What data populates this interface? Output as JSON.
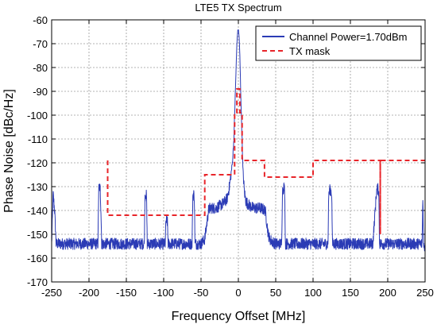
{
  "chart_data": {
    "type": "line",
    "title": "LTE5 TX Spectrum",
    "xlabel": "Frequency Offset [MHz]",
    "ylabel": "Phase Noise [dBc/Hz]",
    "xlim": [
      -250,
      250
    ],
    "ylim": [
      -170,
      -60
    ],
    "x_ticks": [
      -250,
      -200,
      -150,
      -100,
      -50,
      0,
      50,
      100,
      150,
      200,
      250
    ],
    "y_ticks": [
      -60,
      -70,
      -80,
      -90,
      -100,
      -110,
      -120,
      -130,
      -140,
      -150,
      -160,
      -170
    ],
    "grid": true,
    "legend_position": "top-right",
    "series": [
      {
        "name": "Channel Power=1.70dBm",
        "color": "#2b3bb5",
        "style": "solid",
        "noise_floor": -154,
        "x": [
          -250,
          -248,
          -246,
          -244,
          -200,
          -188,
          -187,
          -186,
          -185,
          -184,
          -183,
          -182,
          -175,
          -126,
          -125,
          -124,
          -123,
          -122,
          -100,
          -98,
          -97,
          -96,
          -95,
          -94,
          -92,
          -62,
          -61,
          -60,
          -59,
          -58,
          -50,
          -45,
          -42,
          -40,
          -38,
          -36,
          -30,
          -25,
          -20,
          -15,
          -12,
          -10,
          -8,
          -6,
          -5,
          -4,
          -3,
          -2,
          -1,
          0,
          1,
          2,
          3,
          4,
          5,
          6,
          8,
          10,
          12,
          15,
          20,
          25,
          30,
          36,
          38,
          40,
          42,
          45,
          50,
          58,
          59,
          60,
          61,
          62,
          63,
          64,
          80,
          100,
          120,
          121,
          122,
          123,
          124,
          125,
          126,
          150,
          180,
          185,
          186,
          187,
          188,
          189,
          190,
          195,
          200,
          246,
          247,
          248,
          250
        ],
        "y": [
          -154,
          -133,
          -140,
          -154,
          -154,
          -154,
          -131,
          -130,
          -131,
          -140,
          -154,
          -154,
          -154,
          -154,
          -134,
          -133,
          -134,
          -154,
          -154,
          -154,
          -145,
          -144,
          -145,
          -154,
          -154,
          -154,
          -134,
          -133,
          -134,
          -154,
          -154,
          -152,
          -145,
          -140,
          -139,
          -139,
          -139,
          -138,
          -137,
          -135,
          -130,
          -125,
          -120,
          -110,
          -100,
          -90,
          -80,
          -70,
          -65,
          -64,
          -67,
          -75,
          -88,
          -100,
          -110,
          -122,
          -132,
          -136,
          -137,
          -138,
          -139,
          -139,
          -139,
          -140,
          -145,
          -150,
          -152,
          -153,
          -154,
          -154,
          -132,
          -131,
          -130,
          -132,
          -154,
          -154,
          -154,
          -154,
          -154,
          -133,
          -132,
          -131,
          -132,
          -133,
          -154,
          -154,
          -154,
          -132,
          -131,
          -131,
          -132,
          -154,
          -154,
          -154,
          -154,
          -154,
          -134,
          -155,
          -155
        ]
      },
      {
        "name": "TX mask",
        "color": "#e8252a",
        "style": "dashed",
        "x": [
          -175,
          -175,
          -45,
          -45,
          -5,
          -5,
          -2,
          -2,
          2,
          2,
          5,
          5,
          15,
          15,
          35,
          35,
          100,
          100,
          190,
          190,
          190,
          250
        ],
        "y": [
          -119,
          -142,
          -142,
          -125,
          -125,
          -99,
          -99,
          -89,
          -89,
          -99,
          -99,
          -119,
          -119,
          -119,
          -119,
          -126,
          -126,
          -119,
          -119,
          -150,
          -119,
          -119
        ]
      }
    ]
  }
}
